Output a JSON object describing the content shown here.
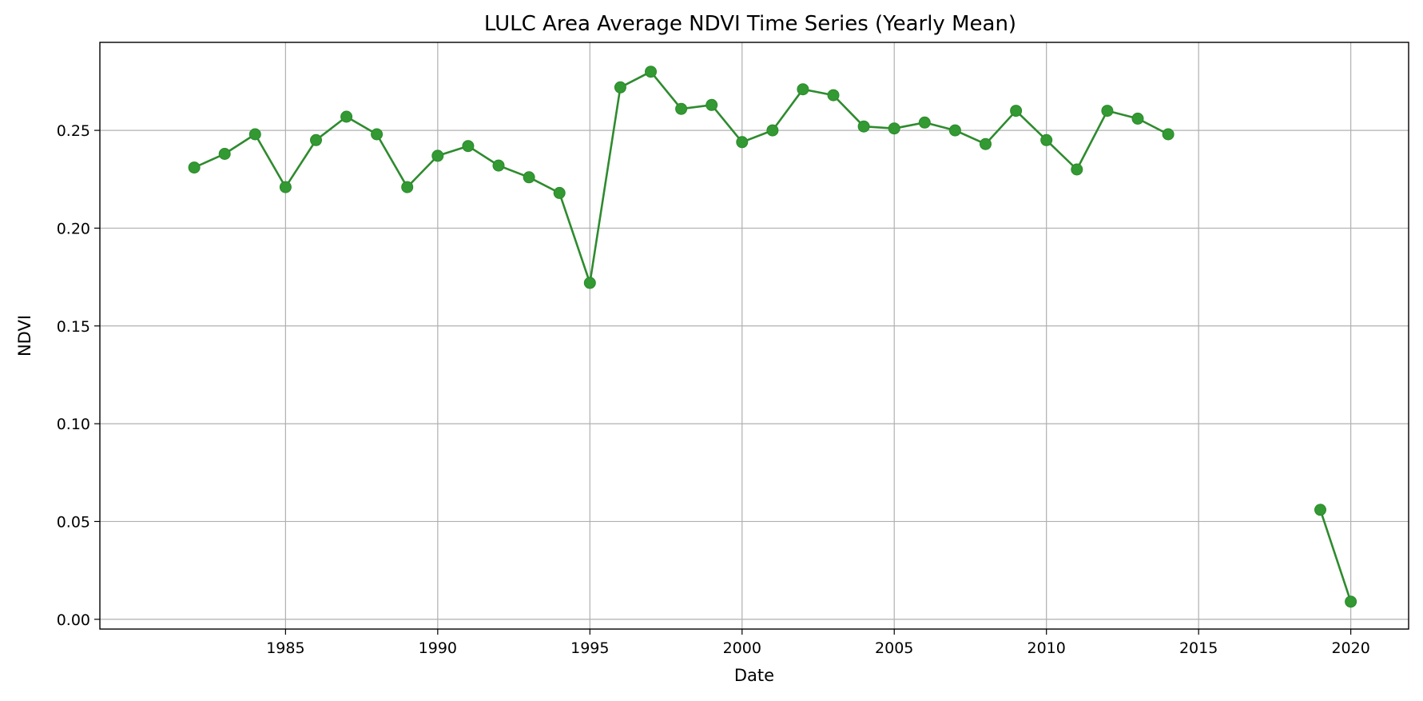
{
  "colors": {
    "series": "#339933",
    "grid": "#b0b0b0"
  },
  "chart_data": {
    "type": "line",
    "title": "LULC Area Average NDVI Time Series (Yearly Mean)",
    "xlabel": "Date",
    "ylabel": "NDVI",
    "x_ticks": [
      1985,
      1990,
      1995,
      2000,
      2005,
      2010,
      2015,
      2020
    ],
    "y_ticks": [
      "0.00",
      "0.05",
      "0.10",
      "0.15",
      "0.20",
      "0.25"
    ],
    "xlim": [
      1978.9,
      2021.9
    ],
    "ylim": [
      -0.005,
      0.295
    ],
    "grid": true,
    "marker": "circle",
    "series": [
      {
        "segments": [
          [
            [
              1982,
              0.231
            ],
            [
              1983,
              0.238
            ],
            [
              1984,
              0.248
            ],
            [
              1985,
              0.221
            ],
            [
              1986,
              0.245
            ],
            [
              1987,
              0.257
            ],
            [
              1988,
              0.248
            ],
            [
              1989,
              0.221
            ],
            [
              1990,
              0.237
            ],
            [
              1991,
              0.242
            ],
            [
              1992,
              0.232
            ],
            [
              1993,
              0.226
            ],
            [
              1994,
              0.218
            ],
            [
              1995,
              0.172
            ],
            [
              1996,
              0.272
            ],
            [
              1997,
              0.28
            ],
            [
              1998,
              0.261
            ],
            [
              1999,
              0.263
            ],
            [
              2000,
              0.244
            ],
            [
              2001,
              0.25
            ],
            [
              2002,
              0.271
            ],
            [
              2003,
              0.268
            ],
            [
              2004,
              0.252
            ],
            [
              2005,
              0.251
            ],
            [
              2006,
              0.254
            ],
            [
              2007,
              0.25
            ],
            [
              2008,
              0.243
            ],
            [
              2009,
              0.26
            ],
            [
              2010,
              0.245
            ],
            [
              2011,
              0.23
            ],
            [
              2012,
              0.26
            ],
            [
              2013,
              0.256
            ],
            [
              2014,
              0.248
            ]
          ],
          [
            [
              2019,
              0.056
            ],
            [
              2020,
              0.009
            ]
          ]
        ]
      }
    ]
  }
}
